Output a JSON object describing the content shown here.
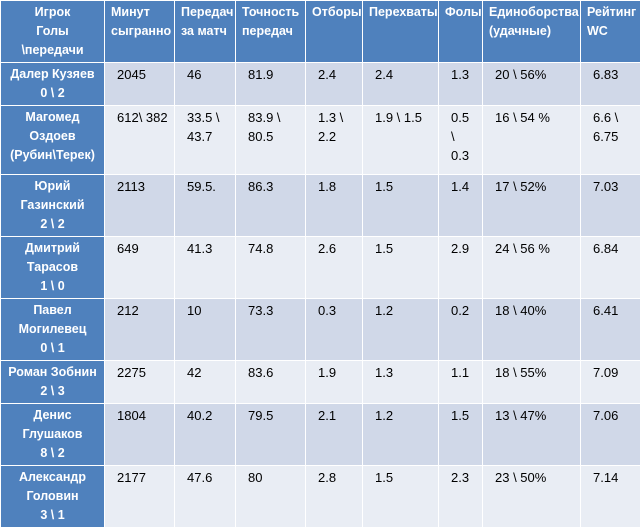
{
  "table": {
    "header": [
      "Игрок\nГолы\n\\передачи",
      "Минут\nсыгранно",
      "Передач\nза матч",
      "Точность\nпередач",
      "Отборы",
      "Перехваты",
      "Фолы",
      "Единоборства\n(удачные)",
      "Рейтинг\nWC"
    ],
    "rows": [
      [
        "Далер Кузяев\n0 \\ 2",
        "2045",
        "46",
        "81.9",
        "2.4",
        "2.4",
        "1.3",
        "20 \\ 56%",
        "6.83"
      ],
      [
        "Магомед\nОздоев\n(Рубин\\Терек)",
        "612\\ 382",
        "33.5 \\\n43.7",
        "83.9 \\\n80.5",
        "1.3 \\\n2.2",
        "1.9 \\ 1.5",
        "0.5 \\\n0.3",
        "16 \\ 54 %",
        "6.6 \\\n6.75"
      ],
      [
        "Юрий\nГазинский\n2 \\ 2",
        "2113",
        "59.5.",
        "86.3",
        "1.8",
        "1.5",
        "1.4",
        "17 \\ 52%",
        "7.03"
      ],
      [
        "Дмитрий\nТарасов\n1 \\ 0",
        "649",
        "41.3",
        "74.8",
        "2.6",
        "1.5",
        "2.9",
        "24 \\ 56 %",
        "6.84"
      ],
      [
        "Павел\nМогилевец\n0 \\ 1",
        "212",
        "10",
        "73.3",
        "0.3",
        "1.2",
        "0.2",
        "18 \\ 40%",
        "6.41"
      ],
      [
        "Роман Зобнин\n2 \\ 3",
        "2275",
        "42",
        "83.6",
        "1.9",
        "1.3",
        "1.1",
        "18 \\ 55%",
        "7.09"
      ],
      [
        "Денис\nГлушаков\n8 \\ 2",
        "1804",
        "40.2",
        "79.5",
        "2.1",
        "1.2",
        "1.5",
        "13 \\ 47%",
        "7.06"
      ],
      [
        "Александр\nГоловин\n3 \\ 1",
        "2177",
        "47.6",
        "80",
        "2.8",
        "1.5",
        "2.3",
        "23 \\ 50%",
        "7.14"
      ]
    ]
  }
}
